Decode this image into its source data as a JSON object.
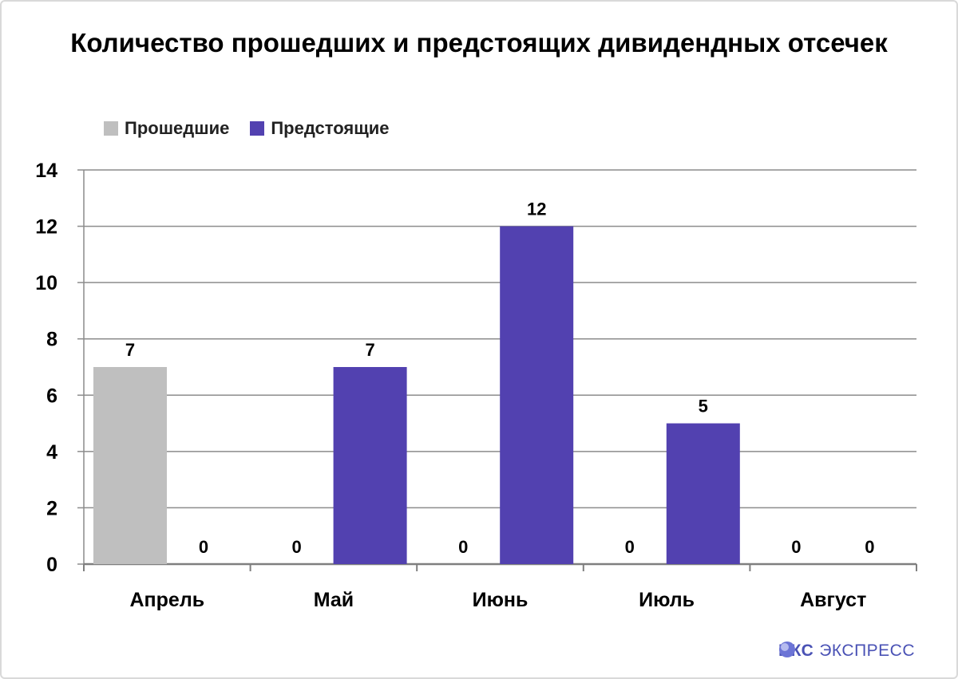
{
  "chart_data": {
    "type": "bar",
    "title": "Количество прошедших и предстоящих дивидендных отсечек",
    "categories": [
      "Апрель",
      "Май",
      "Июнь",
      "Июль",
      "Август"
    ],
    "series": [
      {
        "name": "Прошедшие",
        "color": "#bfbfbf",
        "values": [
          7,
          0,
          0,
          0,
          0
        ]
      },
      {
        "name": "Предстоящие",
        "color": "#5241b0",
        "values": [
          0,
          7,
          12,
          5,
          0
        ]
      }
    ],
    "ylim": [
      0,
      14
    ],
    "yticks": [
      0,
      2,
      4,
      6,
      8,
      10,
      12,
      14
    ],
    "grid": true,
    "legend_position": "top-left",
    "data_labels": true
  },
  "branding": {
    "logo_bold": "БКС",
    "logo_text": "ЭКСПРЕСС",
    "color": "#4a52b5"
  }
}
